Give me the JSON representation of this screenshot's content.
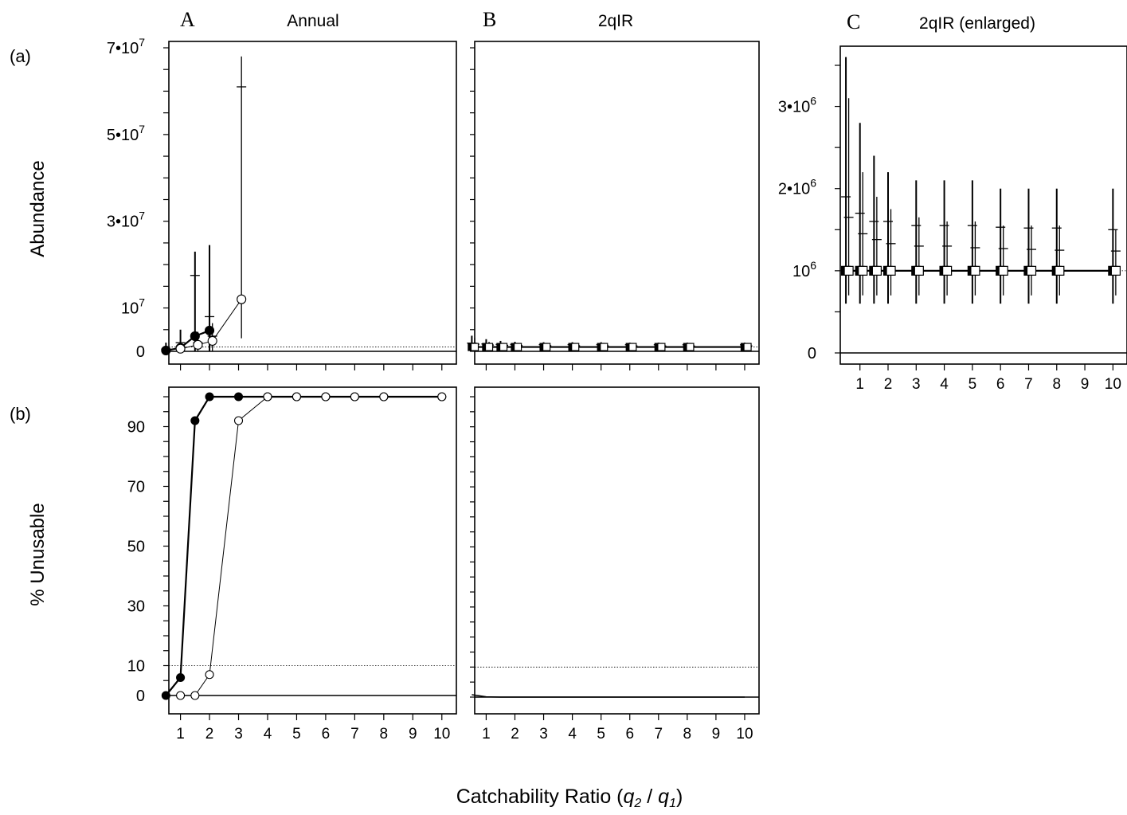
{
  "figure": {
    "row_labels": [
      "(a)",
      "(b)"
    ],
    "xlabel_main": "Catchability Ratio (",
    "xlabel_q2": "q",
    "xlabel_sub2": "2",
    "xlabel_slash": " / ",
    "xlabel_q1": "q",
    "xlabel_sub1": "1",
    "xlabel_close": ")"
  },
  "chart_data": [
    {
      "id": "a_A",
      "panel_letter": "A",
      "title": "Annual",
      "type": "line",
      "ylabel": "Abundance",
      "ylim": [
        0,
        70000000
      ],
      "yticks": [
        {
          "value": 0,
          "label": "0"
        },
        {
          "value": 10000000,
          "label": "10",
          "sup": "7"
        },
        {
          "value": 30000000,
          "label": "3•10",
          "sup": "7"
        },
        {
          "value": 50000000,
          "label": "5•10",
          "sup": "7"
        },
        {
          "value": 70000000,
          "label": "7•10",
          "sup": "7"
        }
      ],
      "reference_line": 1000000,
      "series": [
        {
          "x": [
            0.5,
            1,
            1.5,
            2
          ],
          "values": [
            200000,
            800000,
            3500000,
            4800000
          ],
          "err_low": [
            0,
            0,
            0,
            0
          ],
          "err_high": [
            2000000,
            5000000,
            23000000,
            24500000
          ],
          "mean": [
            500000,
            2000000,
            17500000,
            8000000
          ]
        },
        {
          "x": [
            1,
            1.6,
            2.1,
            3.1
          ],
          "values": [
            600000,
            1500000,
            2400000,
            12000000
          ],
          "err_low": [
            0,
            0,
            0,
            3000000
          ],
          "err_high": [
            1800000,
            4500000,
            6500000,
            68000000
          ],
          "mean": [
            800000,
            2000000,
            3500000,
            61000000
          ]
        }
      ]
    },
    {
      "id": "a_B",
      "panel_letter": "B",
      "title": "2qIR",
      "type": "line",
      "ylim": [
        0,
        70000000
      ],
      "reference_line": 1000000,
      "series": [
        {
          "x": [
            0.5,
            1,
            1.5,
            2,
            3,
            4,
            5,
            6,
            7,
            8,
            10
          ],
          "values": [
            1000000,
            1000000,
            1000000,
            1000000,
            1000000,
            1000000,
            1000000,
            1000000,
            1000000,
            1000000,
            1000000
          ],
          "err_low": [
            600000,
            600000,
            600000,
            600000,
            600000,
            600000,
            600000,
            600000,
            600000,
            600000,
            600000
          ],
          "err_high": [
            3600000,
            2800000,
            2400000,
            2200000,
            2100000,
            2100000,
            2100000,
            2000000,
            2000000,
            2000000,
            2000000
          ],
          "mean": [
            1900000,
            1700000,
            1600000,
            1600000,
            1550000,
            1550000,
            1550000,
            1530000,
            1520000,
            1520000,
            1500000
          ]
        },
        {
          "x": [
            0.6,
            1.1,
            1.6,
            2.1,
            3.1,
            4.1,
            5.1,
            6.1,
            7.1,
            8.1,
            10.1
          ],
          "values": [
            1000000,
            1000000,
            1000000,
            1000000,
            1000000,
            1000000,
            1000000,
            1000000,
            1000000,
            1000000,
            1000000
          ],
          "err_low": [
            700000,
            700000,
            700000,
            700000,
            700000,
            700000,
            700000,
            700000,
            700000,
            700000,
            700000
          ],
          "err_high": [
            3100000,
            2200000,
            1900000,
            1750000,
            1650000,
            1600000,
            1600000,
            1550000,
            1550000,
            1550000,
            1500000
          ],
          "mean": [
            1650000,
            1450000,
            1380000,
            1330000,
            1300000,
            1300000,
            1280000,
            1270000,
            1260000,
            1250000,
            1240000
          ]
        }
      ]
    },
    {
      "id": "a_C",
      "panel_letter": "C",
      "title": "2qIR (enlarged)",
      "type": "line",
      "ylim": [
        0,
        3500000
      ],
      "yticks": [
        {
          "value": 0,
          "label": "0"
        },
        {
          "value": 1000000,
          "label": "10",
          "sup": "6"
        },
        {
          "value": 2000000,
          "label": "2•10",
          "sup": "6"
        },
        {
          "value": 3000000,
          "label": "3•10",
          "sup": "6"
        }
      ],
      "xticks": [
        1,
        2,
        3,
        4,
        5,
        6,
        7,
        8,
        9,
        10
      ],
      "reference_line": 1000000,
      "series": [
        {
          "x": [
            0.5,
            1,
            1.5,
            2,
            3,
            4,
            5,
            6,
            7,
            8,
            10
          ],
          "values": [
            1000000,
            1000000,
            1000000,
            1000000,
            1000000,
            1000000,
            1000000,
            1000000,
            1000000,
            1000000,
            1000000
          ],
          "err_low": [
            600000,
            600000,
            600000,
            600000,
            600000,
            600000,
            600000,
            600000,
            600000,
            600000,
            600000
          ],
          "err_high": [
            3600000,
            2800000,
            2400000,
            2200000,
            2100000,
            2100000,
            2100000,
            2000000,
            2000000,
            2000000,
            2000000
          ],
          "mean": [
            1900000,
            1700000,
            1600000,
            1600000,
            1550000,
            1550000,
            1550000,
            1530000,
            1520000,
            1520000,
            1500000
          ]
        },
        {
          "x": [
            0.6,
            1.1,
            1.6,
            2.1,
            3.1,
            4.1,
            5.1,
            6.1,
            7.1,
            8.1,
            10.1
          ],
          "values": [
            1000000,
            1000000,
            1000000,
            1000000,
            1000000,
            1000000,
            1000000,
            1000000,
            1000000,
            1000000,
            1000000
          ],
          "err_low": [
            700000,
            700000,
            700000,
            700000,
            700000,
            700000,
            700000,
            700000,
            700000,
            700000,
            700000
          ],
          "err_high": [
            3100000,
            2200000,
            1900000,
            1750000,
            1650000,
            1600000,
            1600000,
            1550000,
            1550000,
            1550000,
            1500000
          ],
          "mean": [
            1650000,
            1450000,
            1380000,
            1330000,
            1300000,
            1300000,
            1280000,
            1270000,
            1260000,
            1250000,
            1240000
          ]
        }
      ]
    },
    {
      "id": "b_A",
      "type": "line",
      "ylabel": "% Unusable",
      "ylim": [
        0,
        100
      ],
      "yticks": [
        {
          "value": 0,
          "label": "0"
        },
        {
          "value": 10,
          "label": "10"
        },
        {
          "value": 30,
          "label": "30"
        },
        {
          "value": 50,
          "label": "50"
        },
        {
          "value": 70,
          "label": "70"
        },
        {
          "value": 90,
          "label": "90"
        }
      ],
      "xticks": [
        1,
        2,
        3,
        4,
        5,
        6,
        7,
        8,
        9,
        10
      ],
      "reference_line": 10,
      "series": [
        {
          "x": [
            0.5,
            1,
            1.5,
            2,
            3,
            4,
            5,
            6,
            7,
            8,
            10
          ],
          "values": [
            0,
            6,
            92,
            100,
            100,
            100,
            100,
            100,
            100,
            100,
            100
          ]
        },
        {
          "x": [
            1,
            1.5,
            2,
            3,
            4,
            5,
            6,
            7,
            8,
            10
          ],
          "values": [
            0,
            0,
            7,
            92,
            100,
            100,
            100,
            100,
            100,
            100
          ]
        }
      ]
    },
    {
      "id": "b_B",
      "type": "line",
      "ylim": [
        0,
        100
      ],
      "xticks": [
        1,
        2,
        3,
        4,
        5,
        6,
        7,
        8,
        9,
        10
      ],
      "reference_line": 10,
      "series": [
        {
          "x": [
            0.5,
            1,
            1.5,
            2,
            3,
            4,
            5,
            6,
            7,
            8,
            10
          ],
          "values": [
            0.8,
            0.1,
            0,
            0,
            0,
            0,
            0,
            0,
            0,
            0,
            0
          ]
        }
      ]
    }
  ]
}
